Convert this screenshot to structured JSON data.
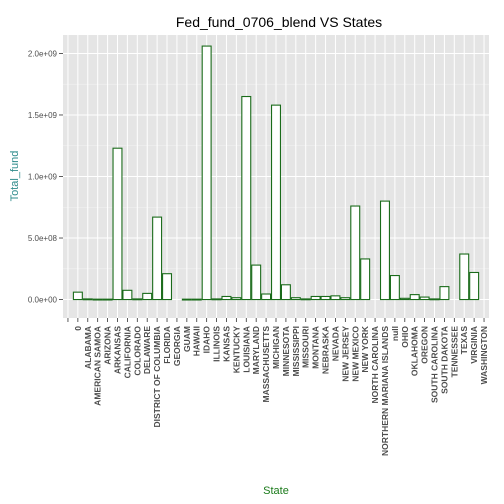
{
  "chart_data": {
    "type": "bar",
    "title": "Fed_fund_0706_blend VS States",
    "xlabel": "State",
    "ylabel": "Total_fund",
    "ylim": [
      -150000000,
      2150000000
    ],
    "yticks": [
      0,
      500000000,
      1000000000,
      1500000000,
      2000000000
    ],
    "ytick_labels": [
      "0.0e+00",
      "5.0e+08",
      "1.0e+09",
      "1.5e+09",
      "2.0e+09"
    ],
    "grid": true,
    "categories": [
      "0",
      "ALABAMA",
      "AMERICAN SAMOA",
      "ARIZONA",
      "ARKANSAS",
      "CALIFORNIA",
      "COLORADO",
      "DELAWARE",
      "DISTRICT OF COLUMBIA",
      "FLORIDA",
      "GEORGIA",
      "GUAM",
      "HAWAII",
      "IDAHO",
      "ILLINOIS",
      "KANSAS",
      "KENTUCKY",
      "LOUISIANA",
      "MARYLAND",
      "MASSACHUSETTS",
      "MICHIGAN",
      "MINNESOTA",
      "MISSISSIPPI",
      "MISSOURI",
      "MONTANA",
      "NEBRASKA",
      "NEVADA",
      "NEW JERSEY",
      "NEW MEXICO",
      "NEW YORK",
      "NORTH CAROLINA",
      "NORTHERN MARIANA ISLANDS",
      "null",
      "OHIO",
      "OKLAHOMA",
      "OREGON",
      "SOUTH CAROLINA",
      "SOUTH DAKOTA",
      "TENNESSEE",
      "TEXAS",
      "VIRGINIA",
      "WASHINGTON"
    ],
    "slots": [
      {
        "label": "",
        "value": null
      },
      {
        "label": "0",
        "value": 60000000
      },
      {
        "label": "ALABAMA",
        "value": 5000000
      },
      {
        "label": "AMERICAN SAMOA",
        "value": 3000000
      },
      {
        "label": "ARIZONA",
        "value": 3000000
      },
      {
        "label": "ARKANSAS",
        "value": 1230000000
      },
      {
        "label": "CALIFORNIA",
        "value": 75000000
      },
      {
        "label": "COLORADO",
        "value": 5000000
      },
      {
        "label": "DELAWARE",
        "value": 50000000
      },
      {
        "label": "DISTRICT OF COLUMBIA",
        "value": 670000000
      },
      {
        "label": "FLORIDA",
        "value": 210000000
      },
      {
        "label": "GEORGIA",
        "value": null
      },
      {
        "label": "GUAM",
        "value": 3000000
      },
      {
        "label": "HAWAII",
        "value": 3000000
      },
      {
        "label": "IDAHO",
        "value": 2060000000
      },
      {
        "label": "ILLINOIS",
        "value": 5000000
      },
      {
        "label": "KANSAS",
        "value": 25000000
      },
      {
        "label": "KENTUCKY",
        "value": 15000000
      },
      {
        "label": "LOUISIANA",
        "value": 1650000000
      },
      {
        "label": "MARYLAND",
        "value": 280000000
      },
      {
        "label": "MASSACHUSETTS",
        "value": 45000000
      },
      {
        "label": "MICHIGAN",
        "value": 1580000000
      },
      {
        "label": "MINNESOTA",
        "value": 120000000
      },
      {
        "label": "MISSISSIPPI",
        "value": 15000000
      },
      {
        "label": "MISSOURI",
        "value": 5000000
      },
      {
        "label": "MONTANA",
        "value": 25000000
      },
      {
        "label": "NEBRASKA",
        "value": 25000000
      },
      {
        "label": "NEVADA",
        "value": 30000000
      },
      {
        "label": "NEW JERSEY",
        "value": 15000000
      },
      {
        "label": "NEW MEXICO",
        "value": 760000000
      },
      {
        "label": "NEW YORK",
        "value": 330000000
      },
      {
        "label": "NORTH CAROLINA",
        "value": null
      },
      {
        "label": "NORTHERN MARIANA ISLANDS",
        "value": 800000000
      },
      {
        "label": "null",
        "value": 195000000
      },
      {
        "label": "OHIO",
        "value": 10000000
      },
      {
        "label": "OKLAHOMA",
        "value": 40000000
      },
      {
        "label": "OREGON",
        "value": 20000000
      },
      {
        "label": "SOUTH CAROLINA",
        "value": 5000000
      },
      {
        "label": "SOUTH DAKOTA",
        "value": 105000000
      },
      {
        "label": "TENNESSEE",
        "value": null
      },
      {
        "label": "TEXAS",
        "value": 370000000
      },
      {
        "label": "VIRGINIA",
        "value": 220000000
      },
      {
        "label": "WASHINGTON",
        "value": null
      }
    ],
    "colors": {
      "panel": "#e5e5e5",
      "bar_fill": "#ffffff",
      "bar_stroke": "#1a6b1a",
      "ylabel": "#2e8b8b",
      "xlabel": "#1a7a1a"
    }
  }
}
